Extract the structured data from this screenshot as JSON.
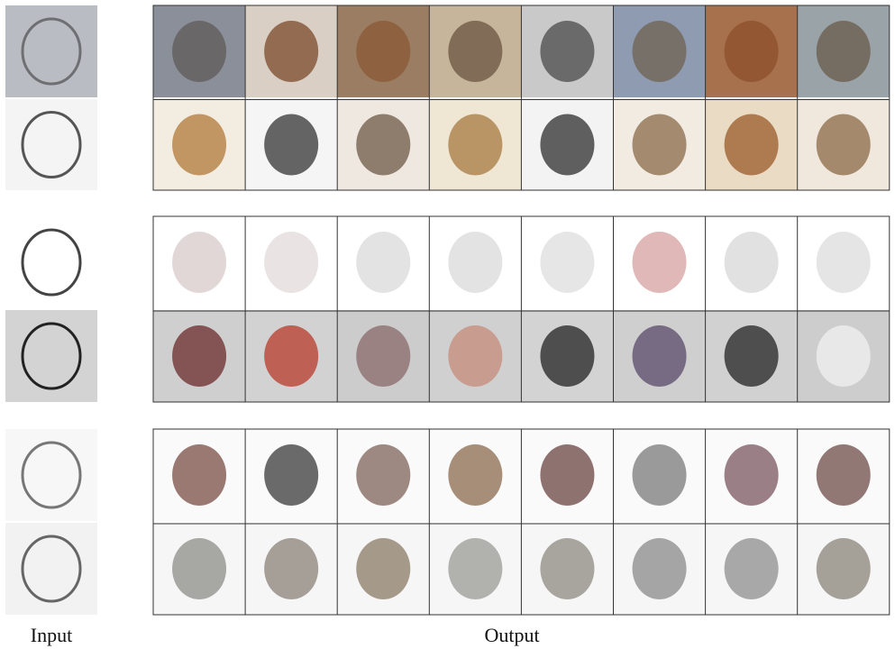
{
  "labels": {
    "input": "Input",
    "output": "Output"
  }
}
